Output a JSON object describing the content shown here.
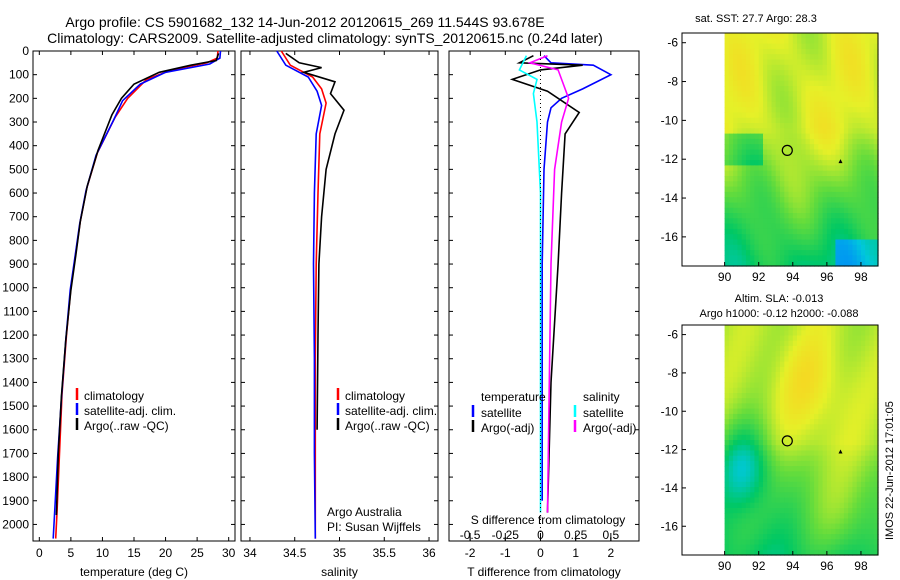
{
  "header": {
    "line1": "Argo profile: CS 5901682_132 14-Jun-2012 20120615_269 11.544S 93.678E",
    "line2": "Climatology: CARS2009. Satellite-adjusted climatology: synTS_20120615.nc (0.24d later)"
  },
  "colors": {
    "climatology": "#ff0000",
    "satellite": "#0000ff",
    "argo": "#000000",
    "salinity_satellite": "#00ffff",
    "salinity_argo": "#ff00ff"
  },
  "chart_data": [
    {
      "type": "line",
      "panel": "temperature",
      "xlabel": "temperature (deg C)",
      "xlim": [
        -1,
        31
      ],
      "xticks": [
        0,
        5,
        10,
        15,
        20,
        25,
        30
      ],
      "ylim": [
        0,
        2070
      ],
      "yticks": [
        0,
        100,
        200,
        300,
        400,
        500,
        600,
        700,
        800,
        900,
        1000,
        1100,
        1200,
        1300,
        1400,
        1500,
        1600,
        1700,
        1800,
        1900,
        2000
      ],
      "y_reversed": true,
      "legend": [
        "climatology",
        "satellite-adj. clim.",
        "Argo(..raw -QC)"
      ],
      "series": [
        {
          "name": "climatology",
          "color": "#ff0000",
          "x": [
            28.3,
            28.2,
            26.5,
            21.0,
            17.0,
            14.0,
            12.0,
            9.2,
            7.5,
            6.5,
            5.8,
            5.0,
            4.3,
            3.6,
            3.2,
            2.8,
            2.6
          ],
          "y": [
            0,
            30,
            50,
            80,
            120,
            200,
            280,
            430,
            580,
            720,
            850,
            1000,
            1200,
            1450,
            1700,
            1950,
            2060
          ]
        },
        {
          "name": "satellite-adj. clim.",
          "color": "#0000ff",
          "x": [
            28.7,
            28.6,
            27.0,
            20.0,
            16.0,
            13.2,
            11.8,
            9.0,
            7.4,
            6.4,
            5.7,
            4.9,
            4.2,
            3.5,
            2.9,
            2.4,
            2.2
          ],
          "y": [
            0,
            30,
            55,
            90,
            140,
            210,
            290,
            440,
            590,
            730,
            860,
            1010,
            1220,
            1470,
            1720,
            1960,
            2060
          ]
        },
        {
          "name": "Argo(..raw -QC)",
          "color": "#000000",
          "x": [
            28.4,
            28.0,
            24.0,
            19.0,
            15.0,
            13.0,
            11.5,
            9.3,
            7.6,
            6.5,
            5.8,
            5.0,
            4.2,
            3.5,
            3.0,
            2.7
          ],
          "y": [
            10,
            40,
            60,
            90,
            140,
            200,
            270,
            420,
            570,
            720,
            860,
            1010,
            1220,
            1460,
            1700,
            1960
          ]
        }
      ]
    },
    {
      "type": "line",
      "panel": "salinity",
      "xlabel": "salinity",
      "xlim": [
        33.9,
        36.1
      ],
      "xticks": [
        34,
        34.5,
        35,
        35.5,
        36
      ],
      "xtick_labels": [
        "34",
        "34.5",
        "35",
        "35.5",
        "36"
      ],
      "ylim": [
        0,
        2070
      ],
      "y_reversed": true,
      "legend": [
        "climatology",
        "satellite-adj. clim.",
        "Argo(..raw -QC)"
      ],
      "annotation": [
        "Argo Australia",
        "PI: Susan Wijffels"
      ],
      "series": [
        {
          "name": "climatology",
          "color": "#ff0000",
          "x": [
            34.35,
            34.45,
            34.7,
            34.8,
            34.85,
            34.78,
            34.76,
            34.74,
            34.73,
            34.73,
            34.73
          ],
          "y": [
            0,
            60,
            110,
            160,
            220,
            350,
            600,
            900,
            1300,
            1700,
            2060
          ]
        },
        {
          "name": "satellite-adj. clim.",
          "color": "#0000ff",
          "x": [
            34.3,
            34.4,
            34.65,
            34.75,
            34.8,
            34.74,
            34.72,
            34.71,
            34.72,
            34.72,
            34.73
          ],
          "y": [
            0,
            60,
            110,
            170,
            230,
            350,
            600,
            900,
            1300,
            1700,
            2060
          ]
        },
        {
          "name": "Argo(..raw -QC)",
          "color": "#000000",
          "x": [
            34.4,
            34.55,
            34.8,
            34.6,
            34.95,
            34.9,
            35.05,
            34.95,
            34.85,
            34.8,
            34.77,
            34.76,
            34.75
          ],
          "y": [
            10,
            50,
            70,
            90,
            130,
            180,
            250,
            350,
            500,
            700,
            900,
            1200,
            1600
          ]
        }
      ]
    },
    {
      "type": "line",
      "panel": "difference",
      "xlabel": "T difference from climatology",
      "xlabel_top": "S difference from climatology",
      "xlim": [
        -2.6,
        2.8
      ],
      "xticks": [
        -2,
        -1,
        0,
        1,
        2
      ],
      "top_ticks": [
        -0.5,
        -0.25,
        0,
        0.25,
        0.5
      ],
      "ylim": [
        0,
        2070
      ],
      "y_reversed": true,
      "legend_headers": [
        "temperature",
        "salinity"
      ],
      "legend": [
        "satellite",
        "Argo(-adj)",
        "satellite",
        "Argo(-adj)"
      ],
      "series": [
        {
          "name": "satellite",
          "color": "#0000ff",
          "x": [
            0.1,
            0.3,
            1.5,
            2.0,
            1.2,
            0.6,
            0.3,
            0.2,
            0.1,
            0.05,
            0.05,
            0.05
          ],
          "y": [
            20,
            50,
            60,
            100,
            160,
            200,
            240,
            300,
            500,
            900,
            1400,
            1900
          ]
        },
        {
          "name": "Argo(-adj)",
          "color": "#000000",
          "x": [
            -0.2,
            -0.6,
            1.2,
            0.0,
            -0.8,
            0.2,
            1.1,
            0.7,
            0.6,
            0.5,
            0.3,
            0.2
          ],
          "y": [
            20,
            50,
            60,
            80,
            120,
            170,
            260,
            350,
            600,
            900,
            1400,
            1950
          ]
        },
        {
          "name": "satellite",
          "color": "#00ffff",
          "x": [
            -0.4,
            -0.6,
            -0.1,
            -0.2,
            -0.1,
            0.0,
            0.0,
            0.0
          ],
          "y": [
            20,
            80,
            120,
            180,
            300,
            600,
            1200,
            1950
          ]
        },
        {
          "name": "Argo(-adj)",
          "color": "#ff00ff",
          "x": [
            0.2,
            -0.3,
            0.5,
            0.6,
            0.8,
            0.6,
            0.4,
            0.3,
            0.25,
            0.2
          ],
          "y": [
            20,
            50,
            80,
            120,
            200,
            300,
            500,
            900,
            1400,
            1950
          ]
        }
      ]
    },
    {
      "type": "heatmap",
      "panel": "map_sst",
      "title": "sat. SST: 27.7 Argo: 28.3",
      "xlim": [
        87.5,
        99
      ],
      "ylim": [
        -17.5,
        -5.5
      ],
      "xticks": [
        90,
        92,
        94,
        96,
        98
      ],
      "yticks": [
        -6,
        -8,
        -10,
        -12,
        -14,
        -16
      ],
      "profile_location": {
        "lon": 93.678,
        "lat": -11.544
      }
    },
    {
      "type": "heatmap",
      "panel": "map_sla",
      "title_lines": [
        "Altim. SLA: -0.013",
        "Argo h1000: -0.12 h2000: -0.088"
      ],
      "xlim": [
        87.5,
        99
      ],
      "ylim": [
        -17.5,
        -5.5
      ],
      "xticks": [
        90,
        92,
        94,
        96,
        98
      ],
      "yticks": [
        -6,
        -8,
        -10,
        -12,
        -14,
        -16
      ],
      "profile_location": {
        "lon": 93.678,
        "lat": -11.544
      }
    }
  ],
  "side_label": "IMOS 22-Jun-2012 17:01:05"
}
